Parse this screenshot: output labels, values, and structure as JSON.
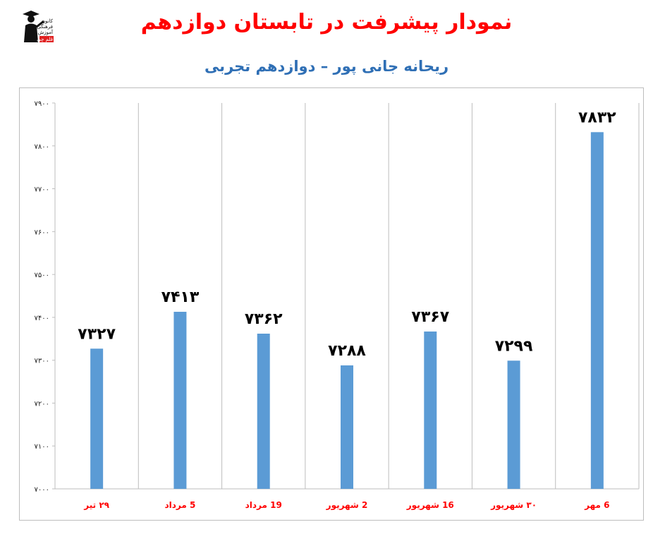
{
  "title": "نمودار پیشرفت در تابستان دوازدهم",
  "subtitle": "ریحانه جانی پور – دوازدهم تجربی",
  "logo": {
    "icon": "graduate-logo-icon",
    "text_lines": [
      "کانون",
      "فرهنگی",
      "آموزش",
      "قلم چی"
    ]
  },
  "chart_data": {
    "type": "bar",
    "categories": [
      "۲۹ تیر",
      "5 مرداد",
      "19 مرداد",
      "2 شهریور",
      "16 شهریور",
      "۳۰ شهریور",
      "6 مهر"
    ],
    "values": [
      7327,
      7413,
      7362,
      7288,
      7367,
      7299,
      7832
    ],
    "data_labels": [
      "۷۳۲۷",
      "۷۴۱۳",
      "۷۳۶۲",
      "۷۲۸۸",
      "۷۳۶۷",
      "۷۲۹۹",
      "۷۸۳۲"
    ],
    "ylim": [
      7000,
      7900
    ],
    "yticks": [
      7000,
      7100,
      7200,
      7300,
      7400,
      7500,
      7600,
      7700,
      7800,
      7900
    ],
    "ytick_labels": [
      "۷۰۰۰",
      "۷۱۰۰",
      "۷۲۰۰",
      "۷۳۰۰",
      "۷۴۰۰",
      "۷۵۰۰",
      "۷۶۰۰",
      "۷۷۰۰",
      "۷۸۰۰",
      "۷۹۰۰"
    ],
    "xlabel": "",
    "ylabel": "",
    "grid": "vertical",
    "bar_color": "#5b9bd5",
    "category_color": "#ff0000",
    "gridline_color": "#bdbdbd"
  }
}
